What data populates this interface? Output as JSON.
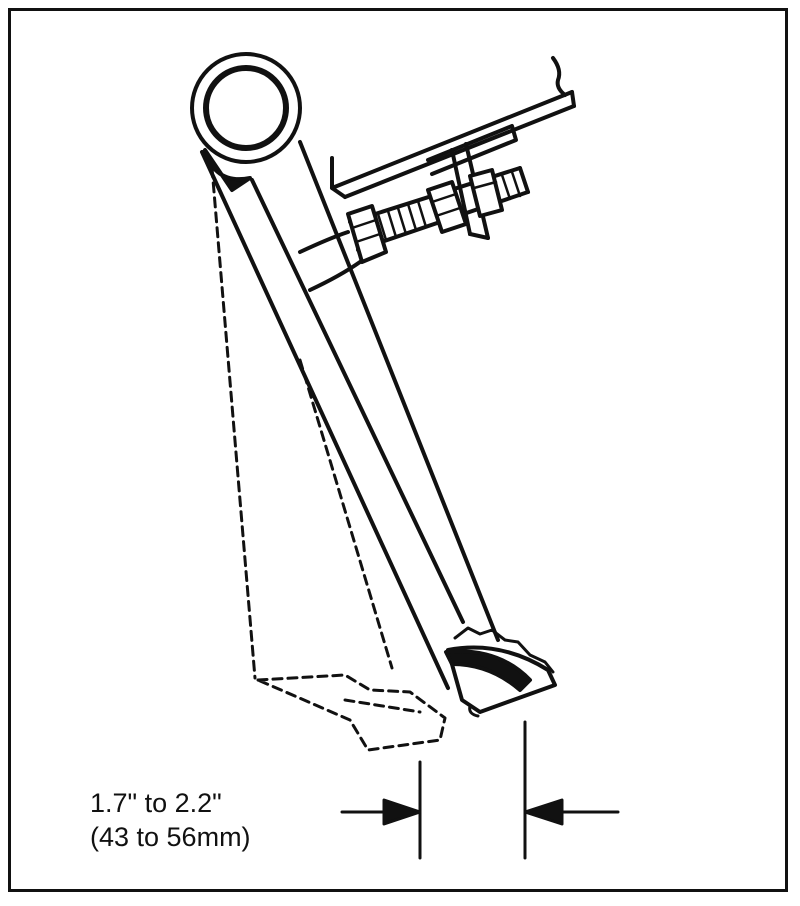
{
  "diagram": {
    "parts": [
      "pedal-arm-rod",
      "mounting-bracket",
      "adjusting-bolt",
      "lock-nut",
      "pedal-pad",
      "pedal-pad-alternate-position"
    ],
    "line_color": "#111111",
    "background": "#ffffff"
  },
  "measurement": {
    "range_imperial": "1.7\" to 2.2\"",
    "range_metric": "(43 to 56mm)"
  }
}
